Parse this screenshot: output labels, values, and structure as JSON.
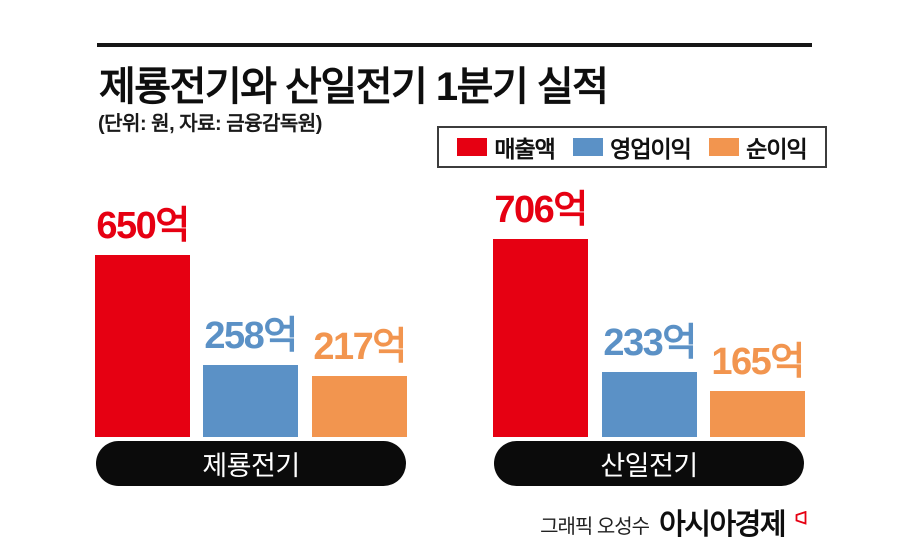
{
  "header": {
    "title": "제룡전기와 산일전기 1분기 실적",
    "subtitle": "(단위: 원, 자료: 금융감독원)"
  },
  "legend": {
    "items": [
      {
        "label": "매출액",
        "color": "#e60012"
      },
      {
        "label": "영업이익",
        "color": "#5b91c6"
      },
      {
        "label": "순이익",
        "color": "#f2954f"
      }
    ]
  },
  "chart_data": {
    "type": "bar",
    "title": "제룡전기와 산일전기 1분기 실적",
    "unit_note": "단위: 원",
    "source": "자료: 금융감독원",
    "series": [
      "매출액",
      "영업이익",
      "순이익"
    ],
    "colors": [
      "#e60012",
      "#5b91c6",
      "#f2954f"
    ],
    "categories": [
      "제룡전기",
      "산일전기"
    ],
    "groups": [
      {
        "label": "제룡전기",
        "values": [
          650,
          258,
          217
        ],
        "value_labels": [
          "650억",
          "258억",
          "217억"
        ]
      },
      {
        "label": "산일전기",
        "values": [
          706,
          233,
          165
        ],
        "value_labels": [
          "706억",
          "233억",
          "165억"
        ]
      }
    ],
    "value_unit": "억",
    "legend_position": "top-right",
    "grid": false,
    "axes_shown": false
  },
  "footer": {
    "credit": "그래픽 오성수",
    "brand": "아시아경제"
  }
}
